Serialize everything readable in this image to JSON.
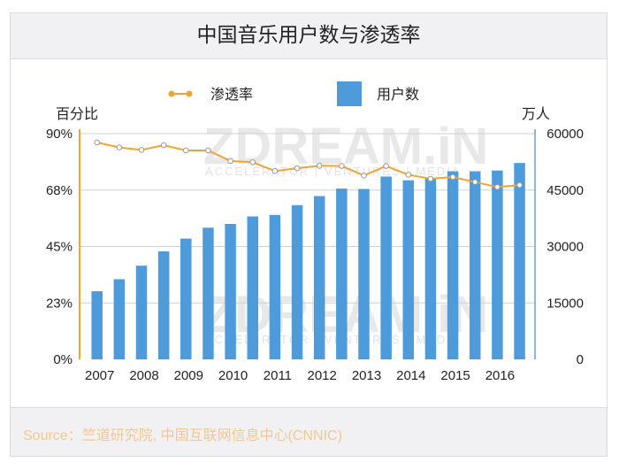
{
  "title": "中国音乐用户数与渗透率",
  "source": "Source：竺道研究院, 中国互联网信息中心(CNNIC)",
  "watermark": {
    "text": "ZDREAM.iN",
    "subtext": "ACCELERATOR | VENTURES | MEDIA"
  },
  "colors": {
    "bars": "#4d9bdb",
    "line": "#eea535",
    "left_axis": "#eea535",
    "right_axis": "#6e9ec4",
    "source": "#f2c88f"
  },
  "chart_data": {
    "type": "bar+line",
    "title": "中国音乐用户数与渗透率",
    "legend_position": "top",
    "grid": true,
    "x_tick_labels": [
      "2007",
      "2008",
      "2009",
      "2010",
      "2011",
      "2012",
      "2013",
      "2014",
      "2015",
      "2016"
    ],
    "y_left": {
      "label": "百分比",
      "ticks": [
        "0%",
        "23%",
        "45%",
        "68%",
        "90%"
      ],
      "range": [
        0,
        90
      ]
    },
    "y_right": {
      "label": "万人",
      "ticks": [
        "0",
        "15000",
        "30000",
        "45000",
        "60000"
      ],
      "range": [
        0,
        60000
      ]
    },
    "series": [
      {
        "name": "用户数",
        "type": "bar",
        "axis": "right",
        "values": [
          18100,
          21300,
          24900,
          28700,
          32100,
          35000,
          36000,
          38000,
          38400,
          41000,
          43400,
          45400,
          45300,
          48600,
          47600,
          48000,
          50000,
          50000,
          50200,
          52200
        ]
      },
      {
        "name": "渗透率",
        "type": "line",
        "axis": "left",
        "values": [
          86.5,
          84.5,
          83.5,
          85.4,
          83.3,
          83.3,
          79.1,
          78.6,
          75.1,
          76.2,
          77.2,
          77.1,
          73.3,
          77.1,
          73.6,
          72.0,
          72.7,
          70.7,
          68.7,
          69.5
        ]
      }
    ]
  }
}
